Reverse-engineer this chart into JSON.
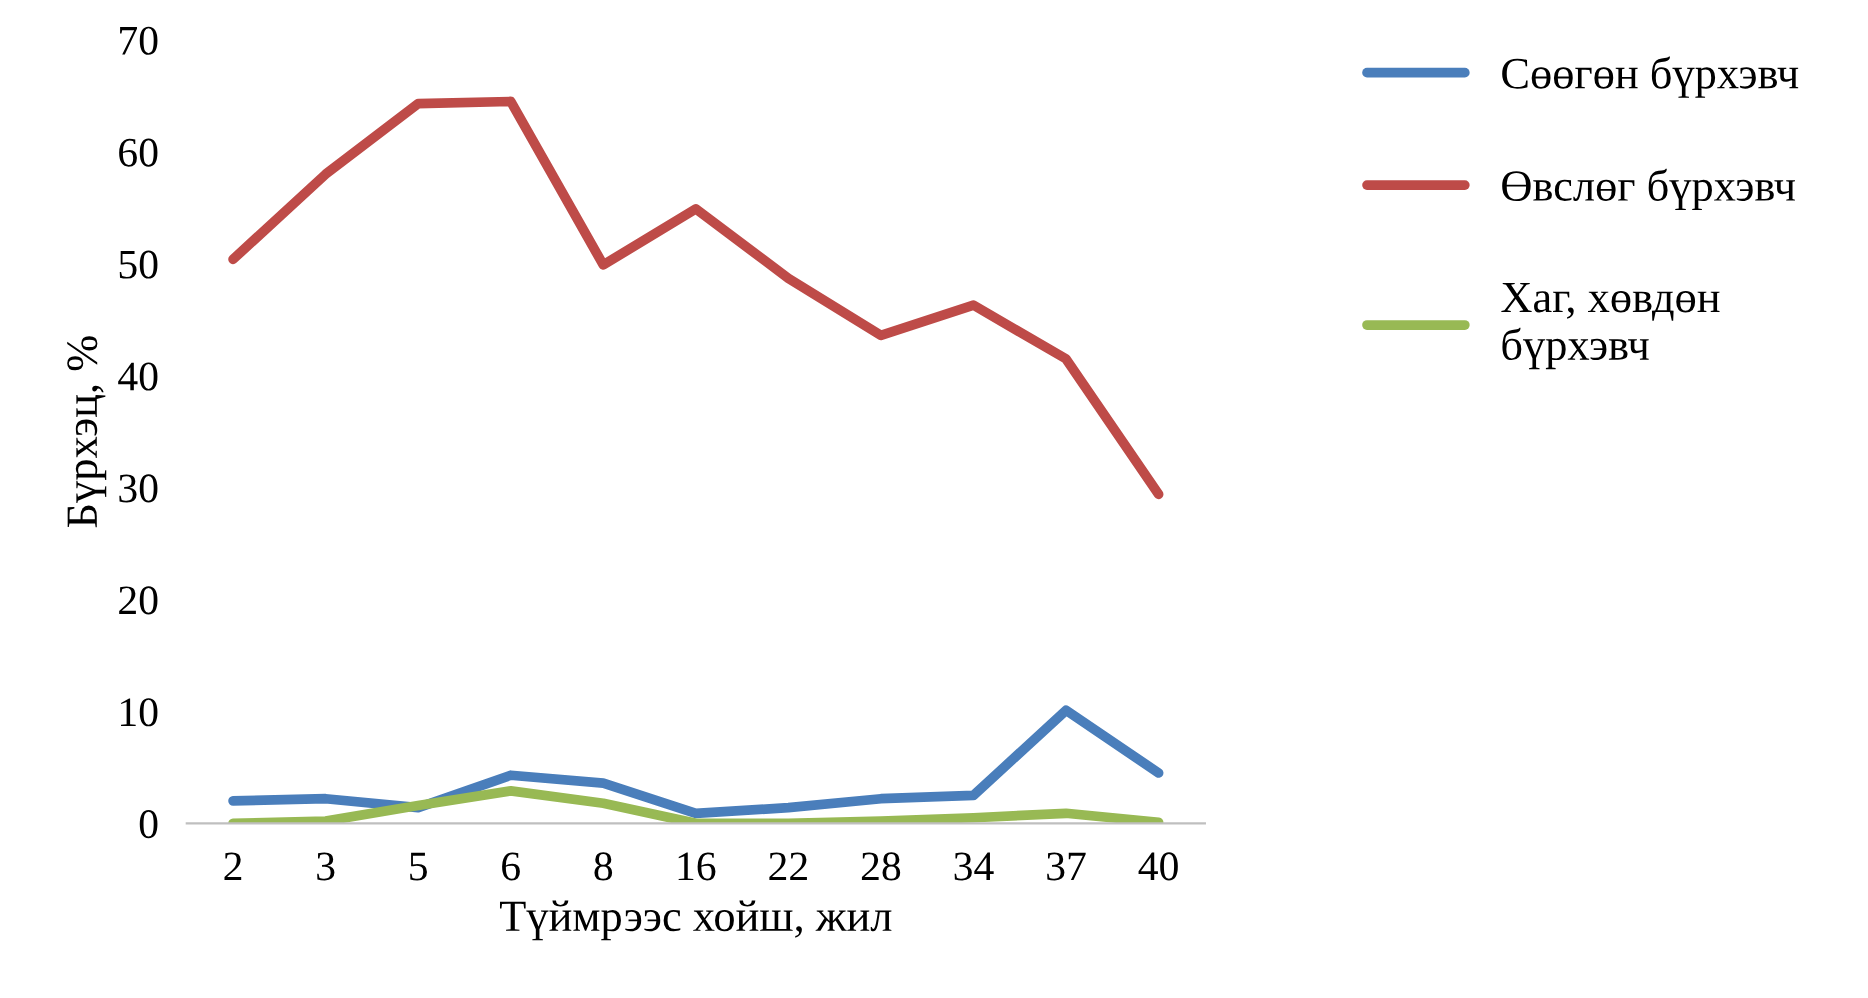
{
  "chart_data": {
    "type": "line",
    "xlabel": "Түймрээс хойш, жил",
    "ylabel": "Бүрхэц, %",
    "categories": [
      "2",
      "3",
      "5",
      "6",
      "8",
      "16",
      "22",
      "28",
      "34",
      "37",
      "40"
    ],
    "series": [
      {
        "name": "Сөөгөн бүрхэвч",
        "color": "#4a7ebb",
        "values": [
          2.0,
          2.2,
          1.4,
          4.3,
          3.6,
          0.9,
          1.4,
          2.2,
          2.5,
          10.1,
          4.5
        ]
      },
      {
        "name": "Өвслөг бүрхэвч",
        "color": "#be4b48",
        "values": [
          50.4,
          58,
          64.3,
          64.5,
          49.9,
          54.9,
          48.7,
          43.6,
          46.3,
          41.5,
          29.4
        ]
      },
      {
        "name": "Хаг, хөвдөн\nбүрхэвч",
        "color": "#98b954",
        "values": [
          0,
          0.2,
          1.6,
          2.9,
          1.8,
          0,
          0,
          0.2,
          0.5,
          0.9,
          0.1
        ]
      }
    ],
    "ylim": [
      0,
      70
    ],
    "yticks": [
      0,
      10,
      20,
      30,
      40,
      50,
      60,
      70
    ],
    "grid": false,
    "legend": "right",
    "marker": "none",
    "line_style": "solid"
  }
}
